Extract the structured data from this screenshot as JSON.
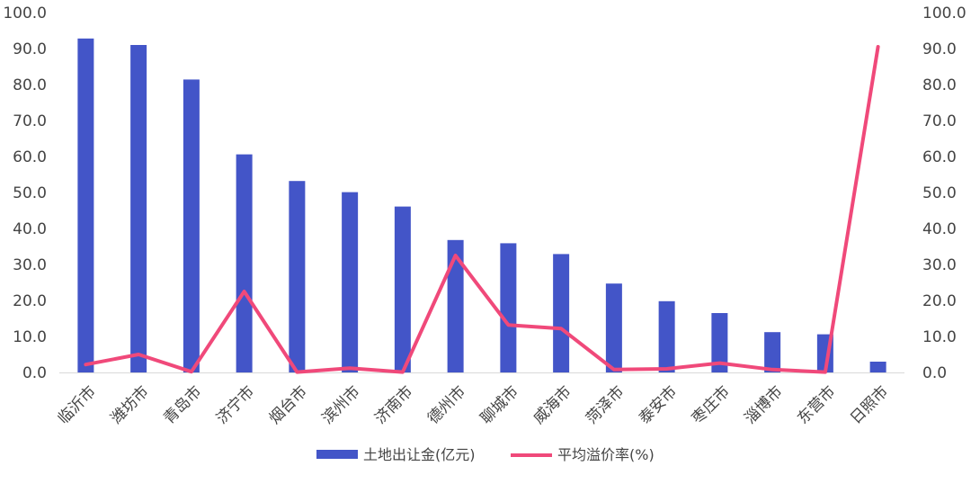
{
  "chart_data": {
    "type": "bar",
    "categories": [
      "临沂市",
      "潍坊市",
      "青岛市",
      "济宁市",
      "烟台市",
      "滨州市",
      "济南市",
      "德州市",
      "聊城市",
      "威海市",
      "菏泽市",
      "泰安市",
      "枣庄市",
      "淄博市",
      "东营市",
      "日照市"
    ],
    "series": [
      {
        "name": "土地出让金(亿元)",
        "type": "bar",
        "axis": "left",
        "color": "#4355C8",
        "values": [
          92.8,
          91.0,
          81.4,
          60.6,
          53.2,
          50.1,
          46.1,
          36.8,
          35.9,
          32.9,
          24.7,
          19.8,
          16.5,
          11.2,
          10.6,
          3.0
        ]
      },
      {
        "name": "平均溢价率(%)",
        "type": "line",
        "axis": "right",
        "color": "#F0497A",
        "values": [
          2.2,
          5.0,
          0.2,
          22.5,
          0.1,
          1.2,
          0.1,
          32.5,
          13.2,
          12.2,
          0.8,
          1.0,
          2.6,
          0.8,
          0.1,
          90.5
        ]
      }
    ],
    "ylim_left": [
      0,
      100
    ],
    "ylim_right": [
      0,
      100
    ],
    "y_ticks": [
      "0.0",
      "10.0",
      "20.0",
      "30.0",
      "40.0",
      "50.0",
      "60.0",
      "70.0",
      "80.0",
      "90.0",
      "100.0"
    ],
    "legend_position": "bottom",
    "grid": false
  }
}
